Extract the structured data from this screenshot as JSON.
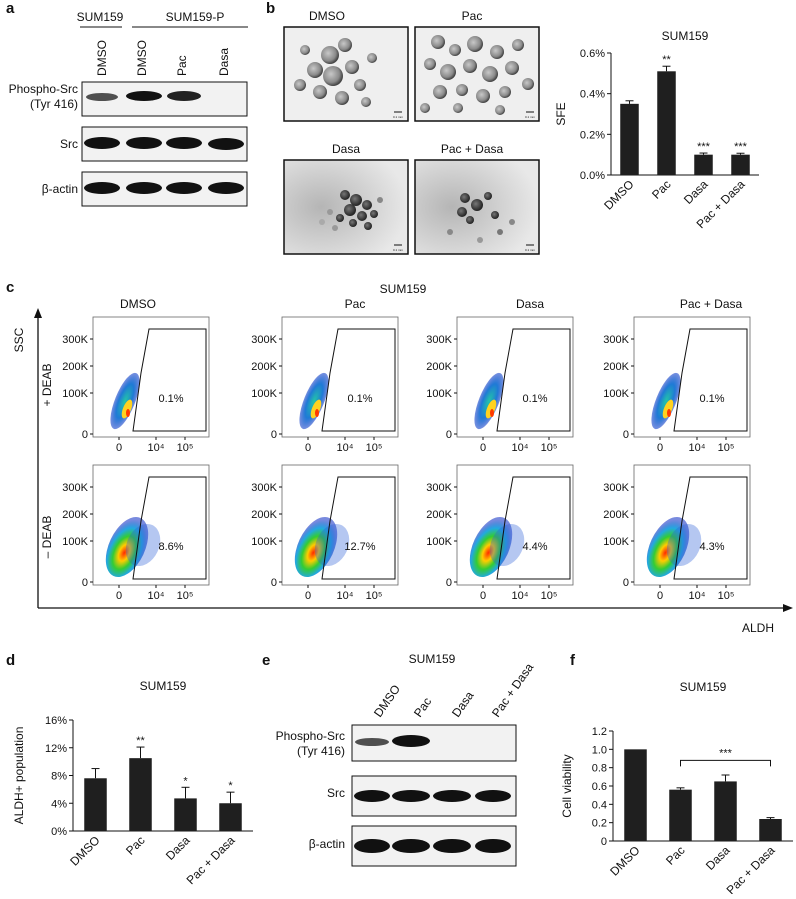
{
  "panels": {
    "a": "a",
    "b": "b",
    "c": "c",
    "d": "d",
    "e": "e",
    "f": "f"
  },
  "panel_a": {
    "group1": "SUM159",
    "group2": "SUM159-P",
    "lanes": [
      "DMSO",
      "DMSO",
      "Pac",
      "Dasa"
    ],
    "rows": [
      {
        "label_line1": "Phospho-Src",
        "label_line2": "(Tyr 416)"
      },
      {
        "label_line1": "Src",
        "label_line2": ""
      },
      {
        "label_line1": "β-actin",
        "label_line2": ""
      }
    ]
  },
  "panel_b": {
    "images": [
      "DMSO",
      "Pac",
      "Dasa",
      "Pac + Dasa"
    ],
    "scale_label": "0.1 mm"
  },
  "panel_c": {
    "title": "SUM159",
    "y_axis": "SSC",
    "x_axis": "ALDH",
    "row_labels": [
      "+ DEAB",
      "– DEAB"
    ],
    "conditions": [
      "DMSO",
      "Pac",
      "Dasa",
      "Pac + Dasa"
    ],
    "y_ticks": [
      "300K",
      "200K",
      "100K",
      "0"
    ],
    "x_ticks": [
      "0",
      "10⁴",
      "10⁵"
    ],
    "gates_plus_deab": [
      "0.1%",
      "0.1%",
      "0.1%",
      "0.1%"
    ],
    "gates_minus_deab": [
      "8.6%",
      "12.7%",
      "4.4%",
      "4.3%"
    ]
  },
  "panel_e": {
    "title": "SUM159",
    "lanes": [
      "DMSO",
      "Pac",
      "Dasa",
      "Pac + Dasa"
    ],
    "rows": [
      {
        "label_line1": "Phospho-Src",
        "label_line2": "(Tyr 416)"
      },
      {
        "label_line1": "Src",
        "label_line2": ""
      },
      {
        "label_line1": "β-actin",
        "label_line2": ""
      }
    ]
  },
  "chart_data": [
    {
      "id": "b",
      "type": "bar",
      "title": "SUM159",
      "xlabel": "",
      "ylabel": "SFE",
      "categories": [
        "DMSO",
        "Pac",
        "Dasa",
        "Pac + Dasa"
      ],
      "values": [
        0.35,
        0.51,
        0.1,
        0.1
      ],
      "errors": [
        0.015,
        0.025,
        0.008,
        0.007
      ],
      "annotations": [
        "",
        "**",
        "***",
        "***"
      ],
      "ylim": [
        0,
        0.6
      ],
      "yticks": [
        0,
        0.2,
        0.4,
        0.6
      ],
      "ytick_labels": [
        "0.0%",
        "0.2%",
        "0.4%",
        "0.6%"
      ]
    },
    {
      "id": "d",
      "type": "bar",
      "title": "SUM159",
      "xlabel": "",
      "ylabel": "ALDH+ population",
      "categories": [
        "DMSO",
        "Pac",
        "Dasa",
        "Pac + Dasa"
      ],
      "values": [
        7.6,
        10.5,
        4.7,
        4.0
      ],
      "errors": [
        1.4,
        1.6,
        1.6,
        1.6
      ],
      "annotations": [
        "",
        "**",
        "*",
        "*"
      ],
      "ylim": [
        0,
        16
      ],
      "yticks": [
        0,
        4,
        8,
        12,
        16
      ],
      "ytick_labels": [
        "0%",
        "4%",
        "8%",
        "12%",
        "16%"
      ]
    },
    {
      "id": "f",
      "type": "bar",
      "title": "SUM159",
      "xlabel": "",
      "ylabel": "Cell viability",
      "categories": [
        "DMSO",
        "Pac",
        "Dasa",
        "Pac + Dasa"
      ],
      "values": [
        1.0,
        0.56,
        0.65,
        0.24
      ],
      "errors": [
        0,
        0.02,
        0.07,
        0.015
      ],
      "annotations": [
        "",
        "",
        "",
        ""
      ],
      "bracket": {
        "from": 1,
        "to": 3,
        "label": "***"
      },
      "ylim": [
        0,
        1.2
      ],
      "yticks": [
        0,
        0.2,
        0.4,
        0.6,
        0.8,
        1.0,
        1.2
      ],
      "ytick_labels": [
        "0",
        "0.2",
        "0.4",
        "0.6",
        "0.8",
        "1.0",
        "1.2"
      ]
    }
  ]
}
